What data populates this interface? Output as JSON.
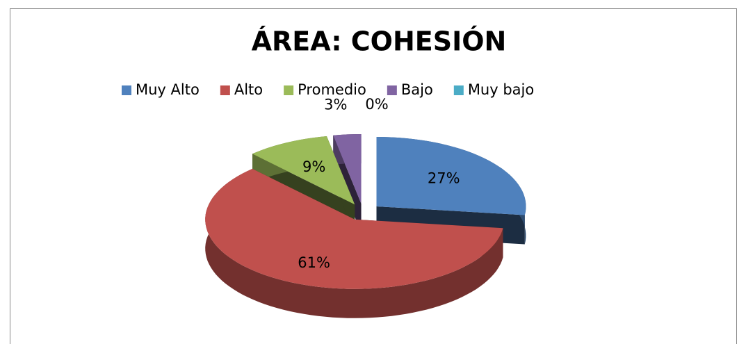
{
  "chart_data": {
    "type": "pie",
    "title": "ÁREA: COHESIÓN",
    "categories": [
      "Muy Alto",
      "Alto",
      "Promedio",
      "Bajo",
      "Muy bajo"
    ],
    "values": [
      27,
      61,
      9,
      3,
      0
    ],
    "value_labels": [
      "27%",
      "61%",
      "9%",
      "3%",
      "0%"
    ],
    "colors": [
      "#4f81bd",
      "#c0504d",
      "#9bbb59",
      "#8064a2",
      "#4bacc6"
    ],
    "legend": "top"
  }
}
